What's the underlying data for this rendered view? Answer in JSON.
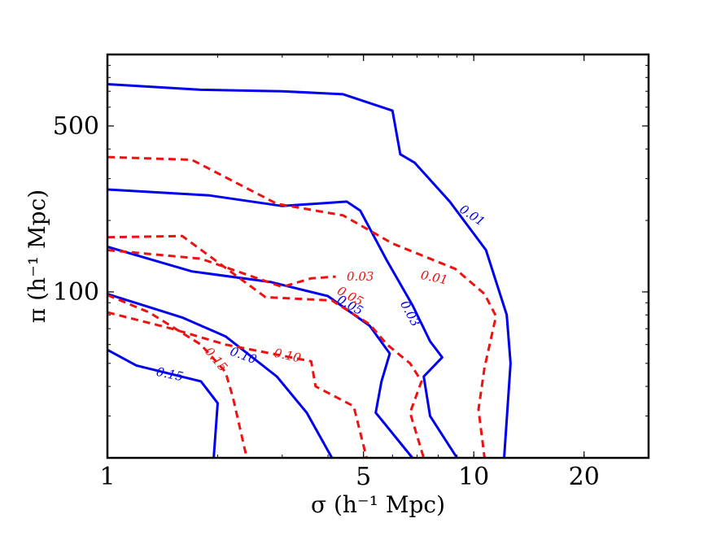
{
  "chart_data": {
    "type": "contour",
    "xlabel": "σ (h⁻¹ Mpc)",
    "ylabel": "π (h⁻¹ Mpc)",
    "x_scale": "log",
    "y_scale": "log",
    "xlim": [
      1,
      30
    ],
    "ylim": [
      20,
      1000
    ],
    "x_ticks": [
      {
        "value": 1,
        "label": "1"
      },
      {
        "value": 5,
        "label": "5"
      },
      {
        "value": 10,
        "label": "10"
      },
      {
        "value": 20,
        "label": "20"
      }
    ],
    "y_ticks": [
      {
        "value": 100,
        "label": "100"
      },
      {
        "value": 500,
        "label": "500"
      }
    ],
    "colors": {
      "solid": "#0000ee",
      "dashed": "#ee1111"
    },
    "series": [
      {
        "name": "solid",
        "style": "solid",
        "color": "#0000ee",
        "level": "0.01",
        "label_text": "0.01",
        "label_at": [
          9.9,
          210
        ],
        "label_angle": 34,
        "points": [
          [
            1,
            750
          ],
          [
            1.8,
            710
          ],
          [
            3,
            700
          ],
          [
            4.4,
            680
          ],
          [
            6,
            580
          ],
          [
            6.3,
            380
          ],
          [
            6.9,
            350
          ],
          [
            8.6,
            240
          ],
          [
            10.8,
            150
          ],
          [
            12.3,
            80
          ],
          [
            12.6,
            50
          ],
          [
            12.1,
            20
          ]
        ]
      },
      {
        "name": "solid",
        "style": "solid",
        "color": "#0000ee",
        "level": "0.03",
        "label_text": "0.03",
        "label_at": [
          6.7,
          81
        ],
        "label_angle": 62,
        "points": [
          [
            1,
            270
          ],
          [
            1.9,
            255
          ],
          [
            3,
            230
          ],
          [
            4.5,
            240
          ],
          [
            4.9,
            220
          ],
          [
            5.8,
            135
          ],
          [
            6.8,
            88
          ],
          [
            7.6,
            62
          ],
          [
            8.2,
            53
          ],
          [
            7.3,
            44
          ],
          [
            7.6,
            30
          ],
          [
            9.0,
            20
          ]
        ]
      },
      {
        "name": "solid",
        "style": "solid",
        "color": "#0000ee",
        "level": "0.05",
        "label_text": "0.05",
        "label_at": [
          4.6,
          88
        ],
        "label_angle": 30,
        "points": [
          [
            1,
            155
          ],
          [
            1.7,
            122
          ],
          [
            2.8,
            110
          ],
          [
            4.0,
            96
          ],
          [
            5.2,
            72
          ],
          [
            5.9,
            55
          ],
          [
            5.6,
            42
          ],
          [
            5.4,
            31
          ],
          [
            6.8,
            20
          ]
        ]
      },
      {
        "name": "solid",
        "style": "solid",
        "color": "#0000ee",
        "level": "0.10",
        "label_text": "0.10",
        "label_at": [
          2.35,
          54
        ],
        "label_angle": 20,
        "points": [
          [
            1,
            98
          ],
          [
            1.6,
            78
          ],
          [
            2.1,
            65
          ],
          [
            2.9,
            44
          ],
          [
            3.5,
            31
          ],
          [
            4.1,
            20
          ]
        ]
      },
      {
        "name": "solid",
        "style": "solid",
        "color": "#0000ee",
        "level": "0.15",
        "label_text": "0.15",
        "label_at": [
          1.48,
          45
        ],
        "label_angle": 12,
        "points": [
          [
            1,
            57
          ],
          [
            1.2,
            49
          ],
          [
            1.8,
            42
          ],
          [
            2.0,
            34
          ],
          [
            1.95,
            20
          ]
        ]
      },
      {
        "name": "dashed",
        "style": "dashed",
        "color": "#ee1111",
        "level": "0.01",
        "label_text": "0.01",
        "label_at": [
          7.8,
          115
        ],
        "label_angle": 12,
        "points": [
          [
            1,
            370
          ],
          [
            1.7,
            360
          ],
          [
            2.9,
            235
          ],
          [
            4.4,
            210
          ],
          [
            6.0,
            160
          ],
          [
            8.9,
            125
          ],
          [
            10.7,
            98
          ],
          [
            11.5,
            79
          ],
          [
            10.7,
            48
          ],
          [
            10.3,
            32
          ],
          [
            10.7,
            20
          ]
        ]
      },
      {
        "name": "dashed",
        "style": "dashed",
        "color": "#ee1111",
        "level": "0.03",
        "label_text": "0.03",
        "label_at": [
          4.9,
          116
        ],
        "label_angle": 0,
        "points": [
          [
            1,
            150
          ],
          [
            1.8,
            138
          ],
          [
            3.0,
            105
          ],
          [
            3.6,
            114
          ],
          [
            4.2,
            116
          ]
        ]
      },
      {
        "name": "dashed",
        "style": "dashed",
        "color": "#ee1111",
        "level": "0.05",
        "label_text": "0.05",
        "label_at": [
          4.6,
          96
        ],
        "label_angle": 28,
        "points": [
          [
            1,
            170
          ],
          [
            1.6,
            172
          ],
          [
            2.7,
            95
          ],
          [
            4.1,
            92
          ],
          [
            5.2,
            73
          ],
          [
            5.8,
            60
          ],
          [
            6.7,
            50
          ],
          [
            7.2,
            42
          ],
          [
            6.7,
            31
          ],
          [
            7.3,
            20
          ]
        ]
      },
      {
        "name": "dashed",
        "style": "dashed",
        "color": "#ee1111",
        "level": "0.10",
        "label_text": "0.10",
        "label_at": [
          3.1,
          54
        ],
        "label_angle": 12,
        "points": [
          [
            1,
            82
          ],
          [
            1.5,
            70
          ],
          [
            2.1,
            60
          ],
          [
            2.8,
            55
          ],
          [
            3.6,
            51
          ],
          [
            3.7,
            40
          ],
          [
            4.7,
            33
          ],
          [
            5.1,
            20
          ]
        ]
      },
      {
        "name": "dashed",
        "style": "dashed",
        "color": "#ee1111",
        "level": "0.15",
        "label_text": "0.15",
        "label_at": [
          1.98,
          52
        ],
        "label_angle": 50,
        "points": [
          [
            1,
            97
          ],
          [
            1.3,
            82
          ],
          [
            1.8,
            60
          ],
          [
            2.1,
            46
          ],
          [
            2.2,
            36
          ],
          [
            2.4,
            20
          ]
        ]
      }
    ]
  }
}
